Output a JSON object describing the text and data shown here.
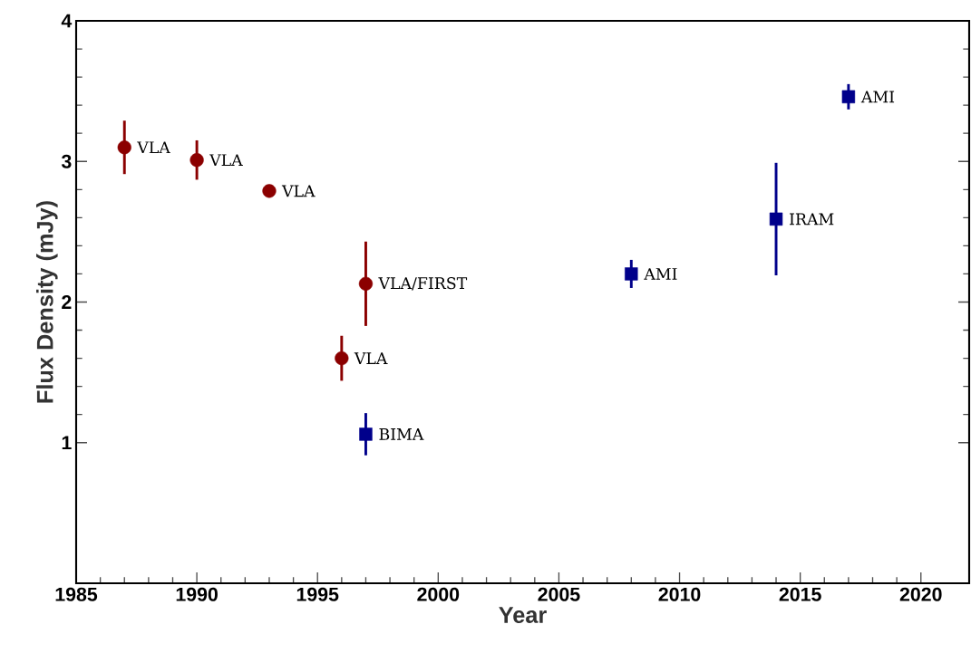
{
  "chart_data": {
    "type": "scatter",
    "xlabel": "Year",
    "ylabel": "Flux Density (mJy)",
    "xlim": [
      1985,
      2022
    ],
    "ylim": [
      0,
      4
    ],
    "xticks": [
      1985,
      1990,
      1995,
      2000,
      2005,
      2010,
      2015,
      2020
    ],
    "yticks": [
      1,
      2,
      3,
      4
    ],
    "series": [
      {
        "color": "#8b0000",
        "marker": "circle",
        "x": [
          1987,
          1990,
          1993,
          1996,
          1997
        ],
        "values": [
          3.1,
          3.01,
          2.79,
          1.6,
          2.13
        ],
        "errors": [
          0.19,
          0.14,
          null,
          0.16,
          0.3
        ]
      },
      {
        "color": "#00008b",
        "marker": "square",
        "x": [
          1997,
          2008,
          2014,
          2017
        ],
        "values": [
          1.06,
          2.2,
          2.59,
          3.46
        ],
        "errors": [
          0.15,
          0.1,
          0.4,
          0.09
        ]
      }
    ],
    "annotations": [
      {
        "text": "VLA",
        "x": 1987,
        "y": 3.1
      },
      {
        "text": "VLA",
        "x": 1990,
        "y": 3.01
      },
      {
        "text": "VLA",
        "x": 1993,
        "y": 2.79
      },
      {
        "text": "VLA",
        "x": 1996,
        "y": 1.6
      },
      {
        "text": "VLA/FIRST",
        "x": 1997,
        "y": 2.13
      },
      {
        "text": "BIMA",
        "x": 1997,
        "y": 1.06
      },
      {
        "text": "AMI",
        "x": 2008,
        "y": 2.2
      },
      {
        "text": "IRAM",
        "x": 2014,
        "y": 2.59
      },
      {
        "text": "AMI",
        "x": 2017,
        "y": 3.46
      }
    ]
  }
}
